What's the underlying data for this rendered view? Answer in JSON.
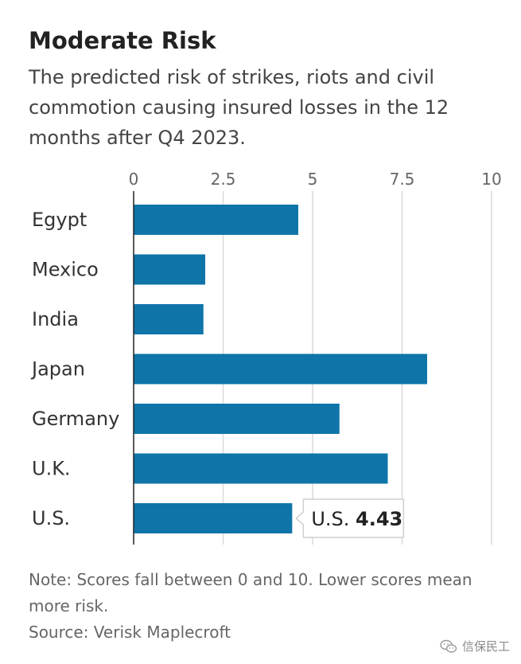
{
  "header": {
    "title": "Moderate Risk",
    "subtitle": "The predicted risk of strikes, riots and civil commotion causing insured losses in the 12 months after Q4 2023."
  },
  "chart_data": {
    "type": "bar",
    "orientation": "horizontal",
    "title": "Moderate Risk",
    "subtitle": "The predicted risk of strikes, riots and civil commotion causing insured losses in the 12 months after Q4 2023.",
    "categories": [
      "Egypt",
      "Mexico",
      "India",
      "Japan",
      "Germany",
      "U.K.",
      "U.S."
    ],
    "values": [
      4.6,
      2.0,
      1.95,
      8.2,
      5.75,
      7.1,
      4.43
    ],
    "xlim": [
      0,
      10
    ],
    "ticks": [
      0,
      2.5,
      5,
      7.5,
      10
    ],
    "tick_labels": [
      "0",
      "2.5",
      "5",
      "7.5",
      "10"
    ],
    "axis_position": "top",
    "grid": true,
    "bar_color": "#0f75a9",
    "gridline_color": "#d9d9d9",
    "annotation": {
      "category": "U.S.",
      "label": "U.S.",
      "value_text": "4.43"
    }
  },
  "footer": {
    "note": "Note: Scores fall between 0 and 10. Lower scores mean more risk.",
    "source": "Source: Verisk Maplecroft"
  },
  "watermark": {
    "icon": "wechat-icon",
    "text": "信保民工"
  }
}
